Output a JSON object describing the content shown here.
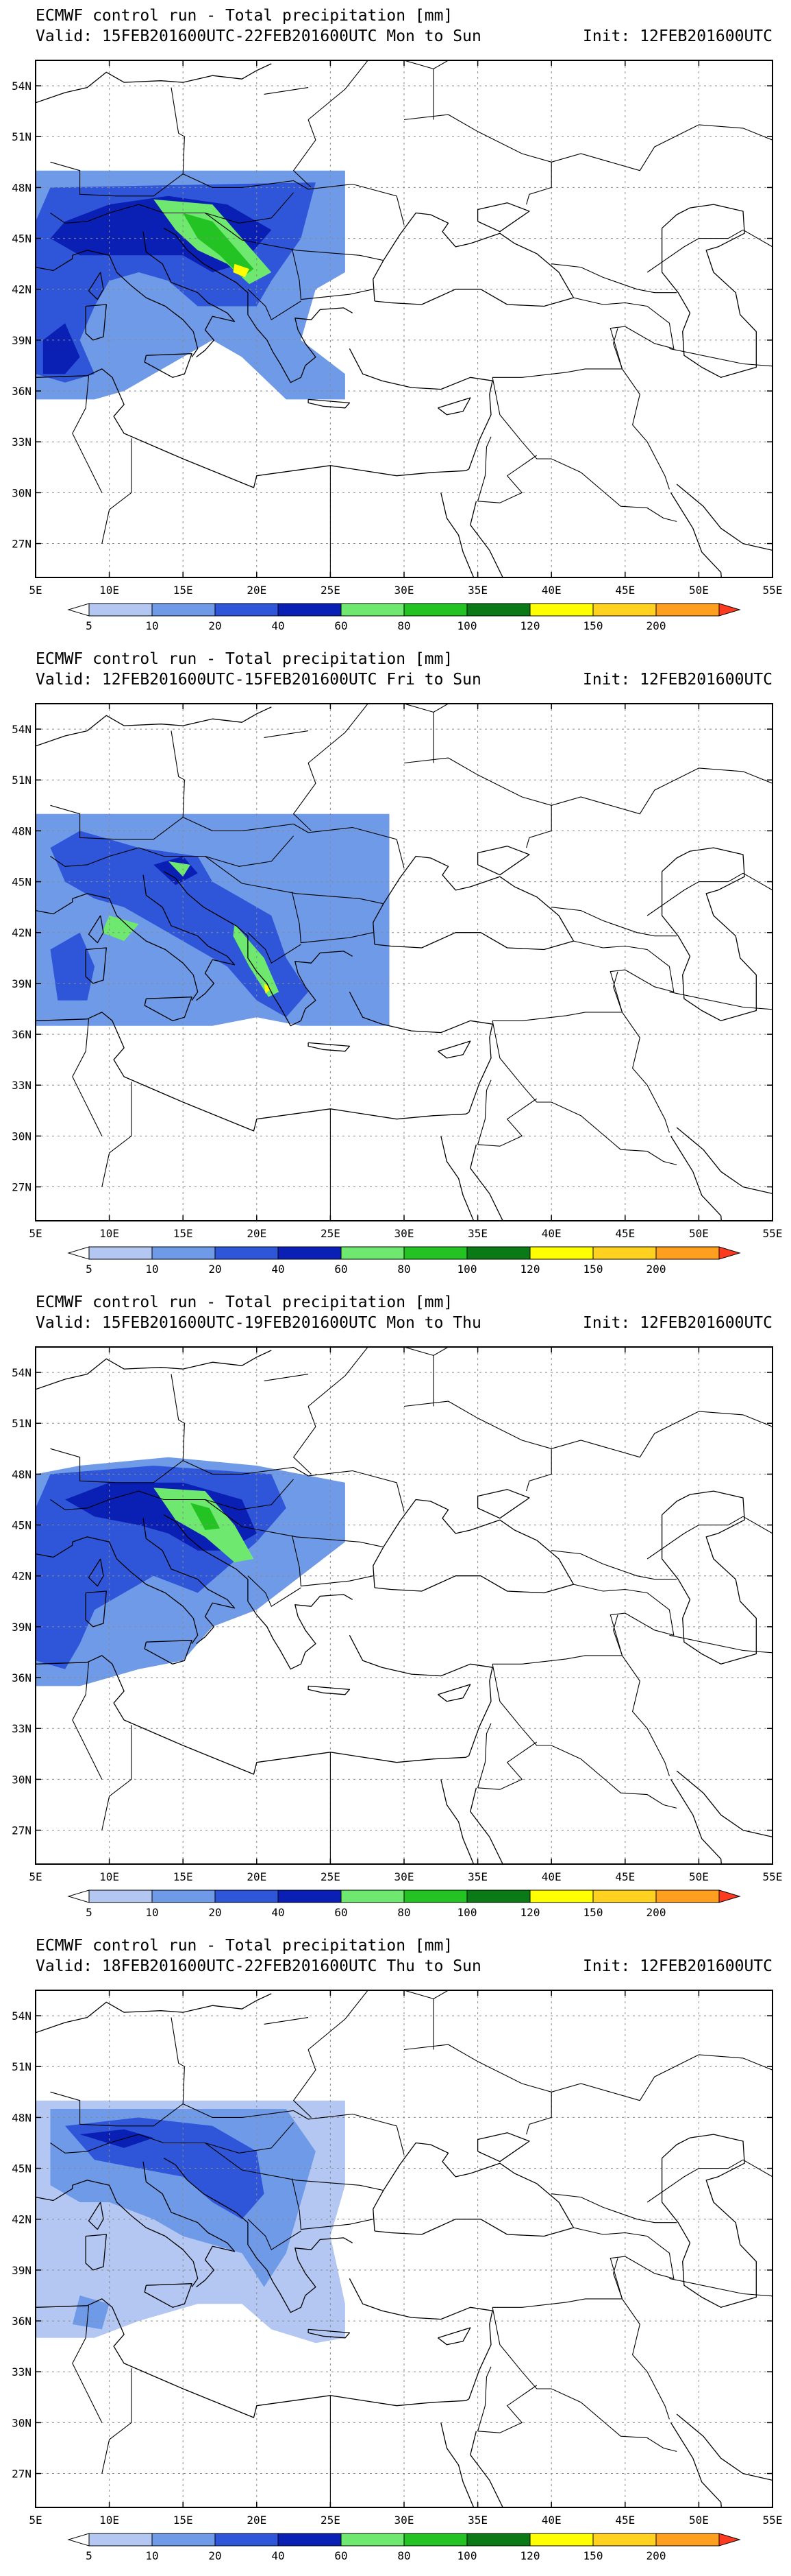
{
  "map_common": {
    "latitude_labels": [
      "54N",
      "51N",
      "48N",
      "45N",
      "42N",
      "39N",
      "36N",
      "33N",
      "30N",
      "27N"
    ],
    "latitude_values": [
      54,
      51,
      48,
      45,
      42,
      39,
      36,
      33,
      30,
      27
    ],
    "longitude_labels": [
      "5E",
      "10E",
      "15E",
      "20E",
      "25E",
      "30E",
      "35E",
      "40E",
      "45E",
      "50E",
      "55E"
    ],
    "longitude_values": [
      5,
      10,
      15,
      20,
      25,
      30,
      35,
      40,
      45,
      50,
      55
    ],
    "lat_range": [
      25,
      55.5
    ],
    "lon_range": [
      5,
      55
    ],
    "gridlines": "dotted"
  },
  "legend": {
    "labels": [
      "5",
      "10",
      "20",
      "40",
      "60",
      "80",
      "100",
      "120",
      "150",
      "200"
    ],
    "colors": [
      "#ffffff",
      "#b3c7f2",
      "#6f9ae8",
      "#2f56d8",
      "#0a1fb4",
      "#6ee86e",
      "#22c322",
      "#0b7a16",
      "#ffff00",
      "#ffd21f",
      "#ff9f1f",
      "#ff3b1f"
    ]
  },
  "panels": [
    {
      "title": "ECMWF control run - Total precipitation [mm]",
      "valid": "Valid: 15FEB201600UTC-22FEB201600UTC Mon to Sun",
      "init": "Init: 12FEB201600UTC",
      "precip_extent": {
        "lon": [
          5,
          26
        ],
        "lat": [
          35.5,
          49
        ]
      }
    },
    {
      "title": "ECMWF control run - Total precipitation [mm]",
      "valid": "Valid: 12FEB201600UTC-15FEB201600UTC Fri to Sun",
      "init": "Init: 12FEB201600UTC",
      "precip_extent": {
        "lon": [
          5,
          29
        ],
        "lat": [
          36.5,
          49
        ]
      }
    },
    {
      "title": "ECMWF control run - Total precipitation [mm]",
      "valid": "Valid: 15FEB201600UTC-19FEB201600UTC Mon to Thu",
      "init": "Init: 12FEB201600UTC",
      "precip_extent": {
        "lon": [
          5,
          26
        ],
        "lat": [
          35.5,
          49
        ]
      }
    },
    {
      "title": "ECMWF control run - Total precipitation [mm]",
      "valid": "Valid: 18FEB201600UTC-22FEB201600UTC Thu to Sun",
      "init": "Init: 12FEB201600UTC",
      "precip_extent": {
        "lon": [
          5,
          26
        ],
        "lat": [
          35.5,
          49
        ]
      }
    }
  ]
}
